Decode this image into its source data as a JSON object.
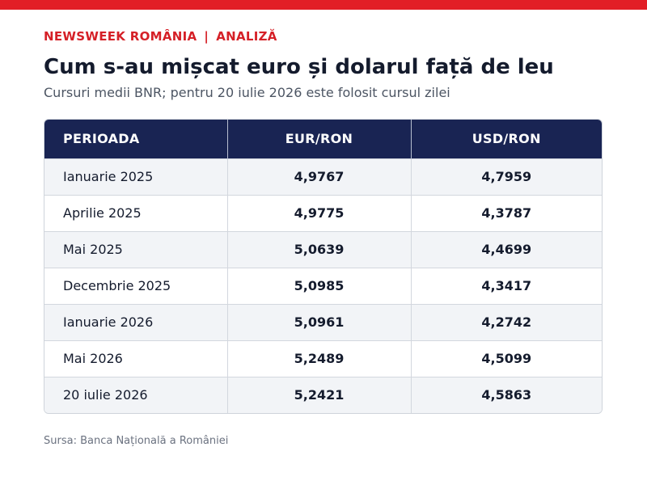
{
  "colors": {
    "brand_red": "#e21e26",
    "header_navy": "#192453",
    "kicker_red": "#d52027"
  },
  "kicker": {
    "publication": "NEWSWEEK ROMÂNIA",
    "separator": "|",
    "section": "ANALIZĂ"
  },
  "title": "Cum s-au mișcat euro și dolarul față de leu",
  "subtitle": "Cursuri medii BNR; pentru 20 iulie 2026 este folosit cursul zilei",
  "source": "Sursa: Banca Națională a României",
  "chart_data": {
    "type": "table",
    "columns": [
      "PERIOADA",
      "EUR/RON",
      "USD/RON"
    ],
    "rows": [
      [
        "Ianuarie 2025",
        "4,9767",
        "4,7959"
      ],
      [
        "Aprilie 2025",
        "4,9775",
        "4,3787"
      ],
      [
        "Mai 2025",
        "5,0639",
        "4,4699"
      ],
      [
        "Decembrie 2025",
        "5,0985",
        "4,3417"
      ],
      [
        "Ianuarie 2026",
        "5,0961",
        "4,2742"
      ],
      [
        "Mai 2026",
        "5,2489",
        "4,5099"
      ],
      [
        "20 iulie 2026",
        "5,2421",
        "4,5863"
      ]
    ]
  }
}
